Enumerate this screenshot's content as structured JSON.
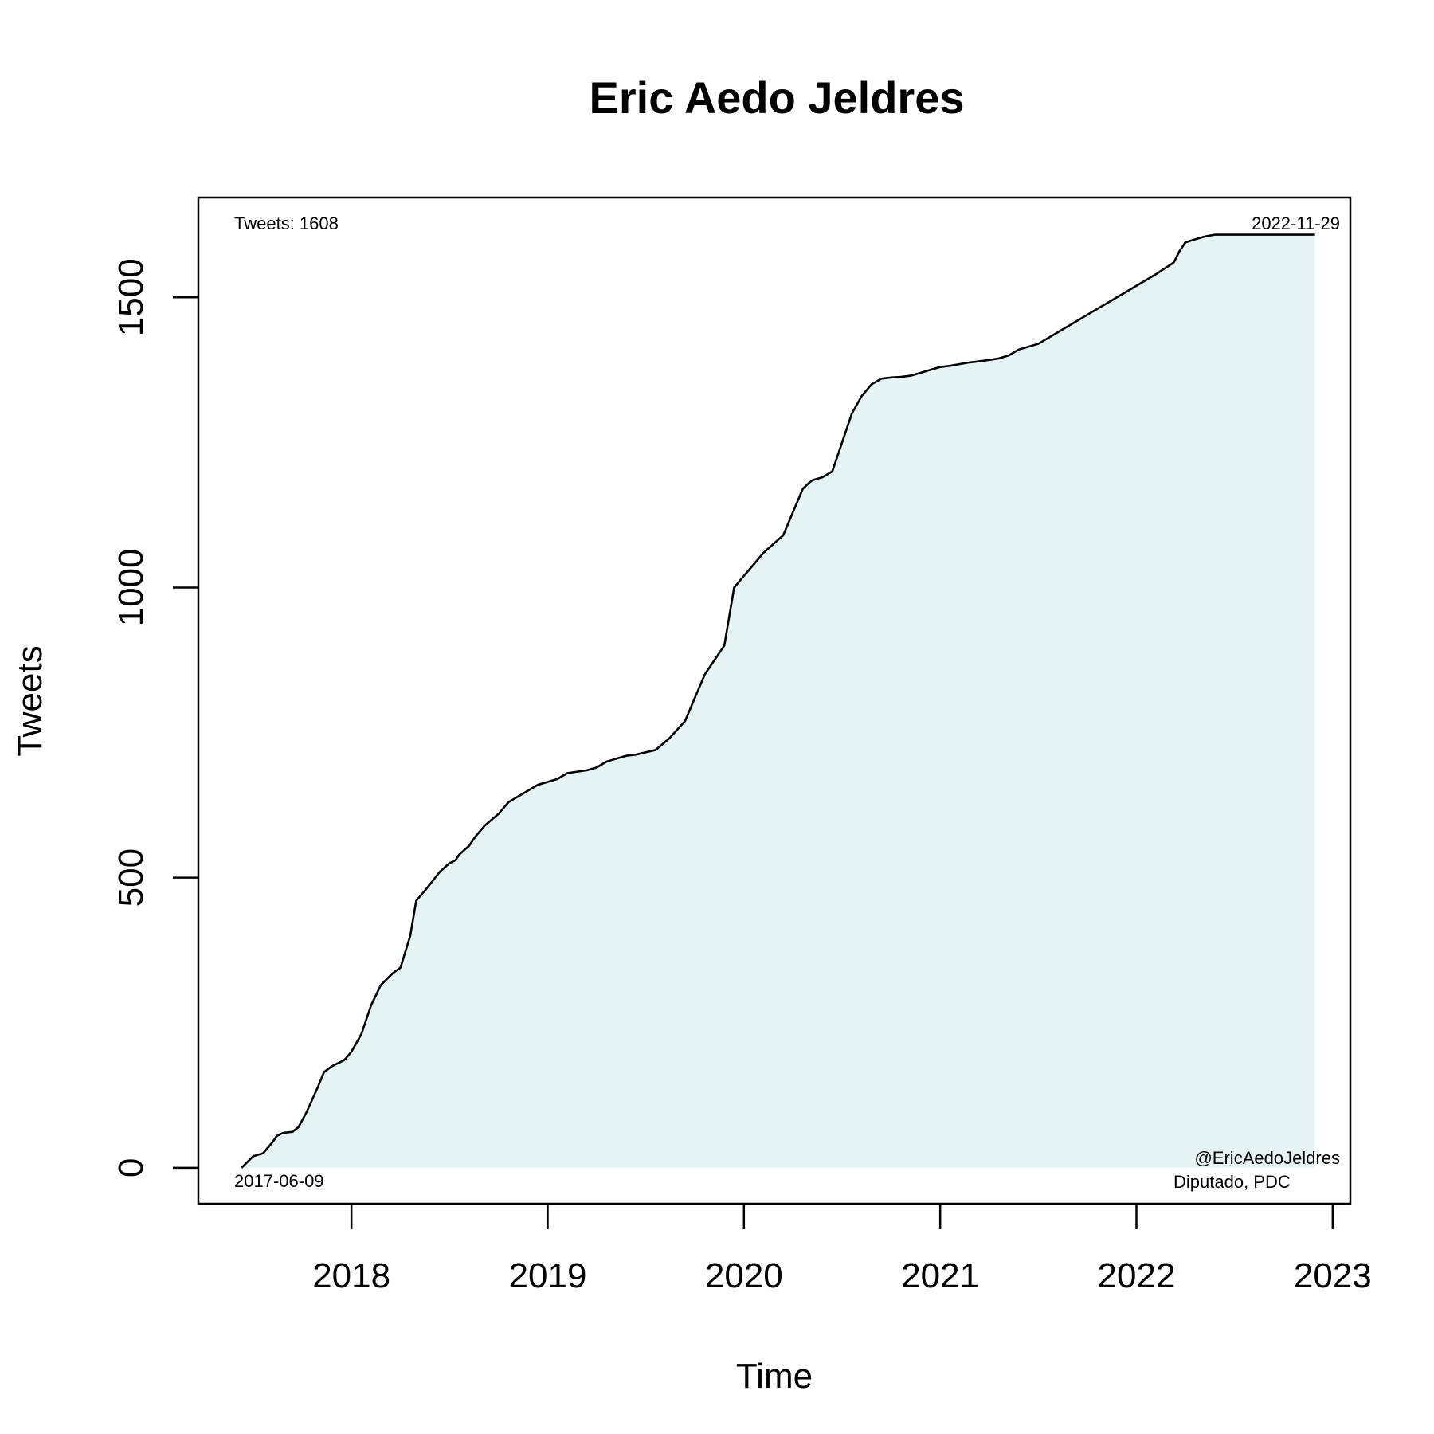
{
  "chart_data": {
    "type": "area",
    "title": "Eric Aedo Jeldres",
    "xlabel": "Time",
    "ylabel": "Tweets",
    "xlim": [
      2017.22,
      2023.09
    ],
    "ylim": [
      -62,
      1672
    ],
    "x_ticks": [
      2018,
      2019,
      2020,
      2021,
      2022,
      2023
    ],
    "y_ticks": [
      0,
      500,
      1000,
      1500
    ],
    "grid": false,
    "legend": "none",
    "fill_color": "#e6f3f5",
    "line_color": "#000000",
    "annotations": {
      "top_left": "Tweets: 1608",
      "top_right": "2022-11-29",
      "bottom_left": "2017-06-09",
      "bottom_right_1": "@EricAedoJeldres",
      "bottom_right_2": "Diputado, PDC"
    },
    "series": [
      {
        "x": [
          2017.44,
          2017.47,
          2017.5,
          2017.55,
          2017.6,
          2017.62,
          2017.65,
          2017.7,
          2017.73,
          2017.77,
          2017.83,
          2017.86,
          2017.9,
          2017.93,
          2017.96,
          2017.97,
          2018.0,
          2018.05,
          2018.1,
          2018.15,
          2018.18,
          2018.21,
          2018.25,
          2018.3,
          2018.33,
          2018.38,
          2018.45,
          2018.5,
          2018.53,
          2018.55,
          2018.6,
          2018.63,
          2018.68,
          2018.75,
          2018.8,
          2018.9,
          2018.95,
          2019.0,
          2019.05,
          2019.1,
          2019.2,
          2019.25,
          2019.3,
          2019.35,
          2019.4,
          2019.45,
          2019.55,
          2019.62,
          2019.7,
          2019.8,
          2019.9,
          2019.95,
          2020.0,
          2020.1,
          2020.2,
          2020.25,
          2020.3,
          2020.33,
          2020.35,
          2020.4,
          2020.45,
          2020.5,
          2020.55,
          2020.6,
          2020.65,
          2020.7,
          2020.75,
          2020.8,
          2020.85,
          2020.9,
          2020.95,
          2021.0,
          2021.05,
          2021.1,
          2021.15,
          2021.2,
          2021.25,
          2021.3,
          2021.35,
          2021.4,
          2021.5,
          2021.6,
          2021.7,
          2021.8,
          2021.9,
          2022.0,
          2022.1,
          2022.19,
          2022.22,
          2022.25,
          2022.3,
          2022.35,
          2022.4,
          2022.45,
          2022.5,
          2022.55,
          2022.6,
          2022.65,
          2022.7,
          2022.75,
          2022.8,
          2022.85,
          2022.91
        ],
        "y": [
          0,
          10,
          20,
          25,
          45,
          55,
          60,
          62,
          70,
          95,
          140,
          165,
          175,
          180,
          185,
          188,
          200,
          230,
          280,
          315,
          325,
          335,
          345,
          400,
          460,
          480,
          510,
          525,
          530,
          540,
          555,
          570,
          590,
          610,
          630,
          650,
          660,
          665,
          670,
          680,
          685,
          690,
          700,
          705,
          710,
          712,
          720,
          740,
          770,
          850,
          900,
          1000,
          1020,
          1060,
          1090,
          1130,
          1170,
          1180,
          1185,
          1190,
          1200,
          1250,
          1300,
          1330,
          1350,
          1360,
          1362,
          1363,
          1365,
          1370,
          1375,
          1380,
          1382,
          1385,
          1388,
          1390,
          1392,
          1395,
          1400,
          1410,
          1420,
          1440,
          1460,
          1480,
          1500,
          1520,
          1540,
          1560,
          1580,
          1595,
          1600,
          1605,
          1608,
          1608,
          1608,
          1608,
          1608,
          1608,
          1608,
          1608,
          1608,
          1608,
          1608
        ]
      }
    ]
  }
}
